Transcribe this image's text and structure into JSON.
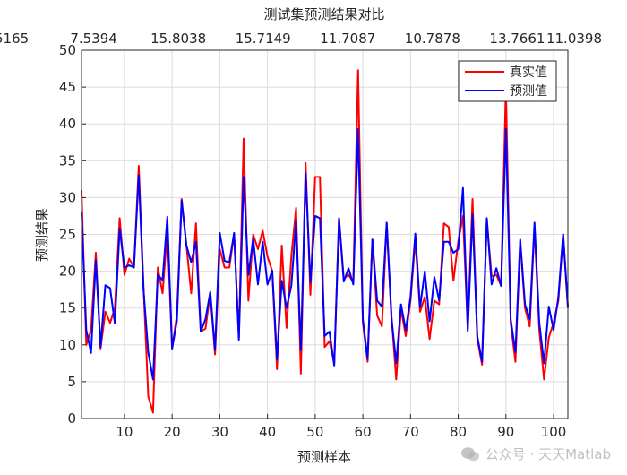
{
  "chart_data": {
    "type": "line",
    "title": "测试集预测结果对比",
    "xlabel": "预测样本",
    "ylabel": "预测结果",
    "xlim": [
      1,
      103
    ],
    "ylim": [
      0,
      50
    ],
    "xticks": [
      10,
      20,
      30,
      40,
      50,
      60,
      70,
      80,
      90,
      100
    ],
    "yticks": [
      0,
      5,
      10,
      15,
      20,
      25,
      30,
      35,
      40,
      45,
      50
    ],
    "grid": true,
    "legend_position": "top-right",
    "top_labels": [
      "5165",
      "7.5394",
      "15.8038",
      "15.7149",
      "11.7087",
      "10.7878",
      "13.7661",
      "11.0398"
    ],
    "series": [
      {
        "name": "真实值",
        "color": "#ff0000",
        "values": [
          31,
          10,
          12,
          22.5,
          9.5,
          14.5,
          13,
          15,
          27.2,
          19.5,
          21.7,
          20.5,
          34.3,
          18,
          3,
          0.8,
          20.5,
          17,
          25.5,
          9.5,
          14,
          29.8,
          23.5,
          17,
          26.5,
          11.8,
          12.2,
          17,
          8.7,
          23,
          20.5,
          20.5,
          25,
          11,
          38,
          16,
          25,
          23,
          25.5,
          22,
          20,
          6.7,
          23.5,
          12.3,
          22,
          28.6,
          6.1,
          34.7,
          16.8,
          32.8,
          32.8,
          9.7,
          10.5,
          7.5,
          27.2,
          19,
          19.5,
          18.5,
          47.3,
          13,
          7.7,
          24.3,
          14,
          12.5,
          26.5,
          14,
          5.3,
          14.9,
          11.2,
          16,
          24.3,
          14.5,
          16.5,
          10.8,
          16,
          15.5,
          26.5,
          26,
          18.7,
          24,
          27.5,
          12.2,
          29.8,
          10.8,
          7.3,
          27,
          19.3,
          19.5,
          18,
          45,
          13,
          7.7,
          24,
          15,
          12.5,
          26,
          12,
          5.3,
          11,
          13,
          16,
          25,
          15
        ]
      },
      {
        "name": "预测值",
        "color": "#0000ff",
        "values": [
          28,
          12,
          8.9,
          21.5,
          9.7,
          18.1,
          17.7,
          12.9,
          25.8,
          20.5,
          20.8,
          20.5,
          33,
          17.5,
          9,
          5.3,
          19.5,
          18.8,
          27.4,
          9.5,
          13.2,
          29.6,
          23.5,
          21.2,
          24,
          11.8,
          13.5,
          17.2,
          9.3,
          25.2,
          21.4,
          21.2,
          25.2,
          10.7,
          32.8,
          19.5,
          24.4,
          18.2,
          24,
          18.2,
          20.1,
          8,
          18.7,
          15,
          18,
          26.8,
          9.3,
          33.3,
          18.5,
          27.5,
          27.2,
          11.2,
          11.8,
          7.2,
          27.2,
          18.6,
          20.4,
          18.2,
          39.3,
          13.5,
          8.1,
          24.3,
          16,
          15.2,
          26.6,
          13.7,
          7.5,
          15.5,
          12,
          16.5,
          25.1,
          15.1,
          20,
          13.2,
          19.2,
          16,
          24,
          24,
          22.5,
          23,
          31.3,
          11.9,
          27.7,
          11.2,
          7.7,
          27.2,
          18.2,
          20.4,
          18,
          39.3,
          13.5,
          9,
          24.3,
          15.5,
          13.5,
          26.6,
          13,
          7.5,
          15.2,
          12,
          16.5,
          25,
          15.2
        ]
      }
    ]
  },
  "watermark": {
    "text": "公众号 · 天天Matlab",
    "icon": "wechat-icon"
  }
}
